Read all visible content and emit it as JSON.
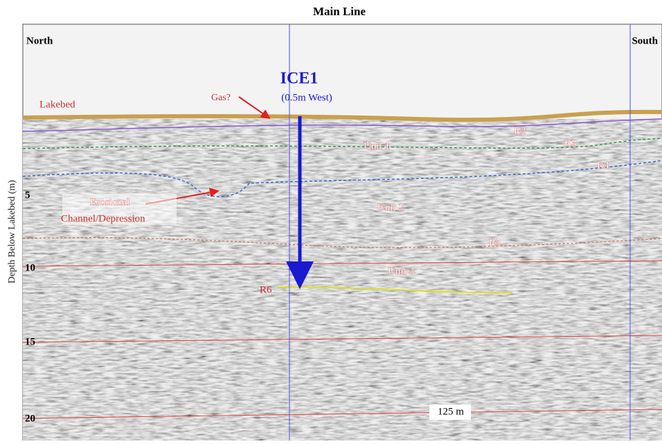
{
  "title": "Main Line",
  "ends": {
    "left": "North",
    "right": "South"
  },
  "borehole": {
    "name": "ICE1",
    "note": "(0.5m West)"
  },
  "axis": {
    "title": "Depth Below Lakebed (m)",
    "ticks": [
      5,
      10,
      15,
      20
    ]
  },
  "labels": [
    "Lakebed",
    "Gas?",
    "R2",
    "Unit 1",
    "R3",
    "R4",
    "Erosional",
    "Channel/Depression",
    "Unit 2",
    "R5",
    "Unit 3",
    "R6"
  ],
  "scale": "125 m"
}
